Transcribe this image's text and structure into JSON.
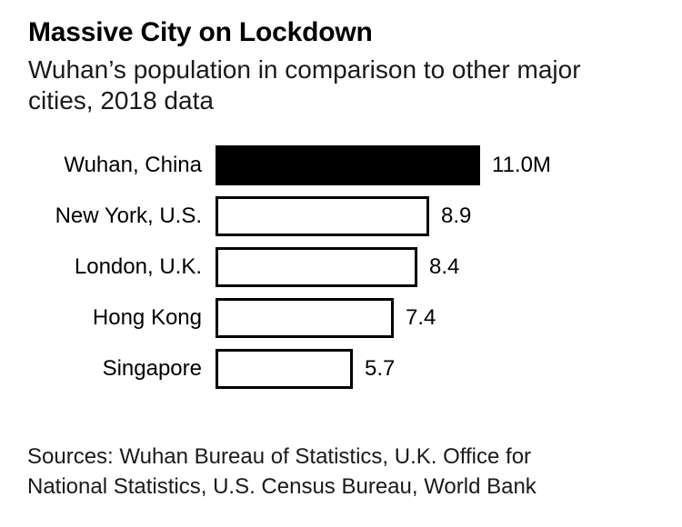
{
  "header": {
    "title": "Massive City on Lockdown",
    "subtitle_lines": [
      "Wuhan’s population in comparison to other major",
      "cities, 2018 data"
    ]
  },
  "footer": {
    "source_lines": [
      "Sources: Wuhan Bureau of Statistics, U.K. Office for",
      "National Statistics, U.S. Census Bureau, World Bank"
    ]
  },
  "colors": {
    "bar_fill": "#000000",
    "bar_outline": "#000000",
    "background": "#ffffff",
    "text": "#000000"
  },
  "chart_data": {
    "type": "bar",
    "orientation": "horizontal",
    "title": "Massive City on Lockdown",
    "subtitle": "Wuhan’s population in comparison to other major cities, 2018 data",
    "categories": [
      "Wuhan, China",
      "New York, U.S.",
      "London, U.K.",
      "Hong Kong",
      "Singapore"
    ],
    "values": [
      11.0,
      8.9,
      8.4,
      7.4,
      5.7
    ],
    "value_labels": [
      "11.0M",
      "8.9",
      "8.4",
      "7.4",
      "5.7"
    ],
    "unit": "millions of people",
    "xlim": [
      0,
      11
    ],
    "highlight_index": 0,
    "grid": false,
    "legend": false,
    "bar_style_highlight": "solid black fill",
    "bar_style_default": "white fill, black outline"
  }
}
